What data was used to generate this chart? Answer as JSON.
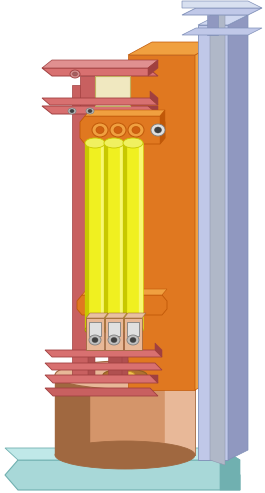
{
  "bg_color": "#ffffff",
  "colors": {
    "orange_main": "#E07820",
    "orange_light": "#F0A040",
    "orange_dark": "#C05808",
    "red_beam": "#C86060",
    "red_beam_top": "#D87070",
    "red_beam_dark": "#A04040",
    "red_beam_side": "#B05050",
    "yellow_cyl": "#F0F020",
    "yellow_dark": "#C8C800",
    "yellow_light": "#F8F870",
    "lavender": "#C0C8E8",
    "lavender_side": "#9098C0",
    "lavender_dark": "#8090B8",
    "teal_base": "#A8D8D8",
    "teal_dark": "#70B0B0",
    "teal_top": "#C0E8E8",
    "copper": "#D4956A",
    "copper_dark": "#A06840",
    "copper_light": "#E8B898",
    "copper_mid": "#C08060",
    "gray_bolt": "#C0C0C0",
    "gray_dark": "#808080",
    "gray_light": "#E0E0E0",
    "white": "#FFFFFF",
    "cream": "#F0E8C0",
    "dark": "#404040"
  },
  "figsize": [
    2.65,
    4.93
  ],
  "dpi": 100
}
